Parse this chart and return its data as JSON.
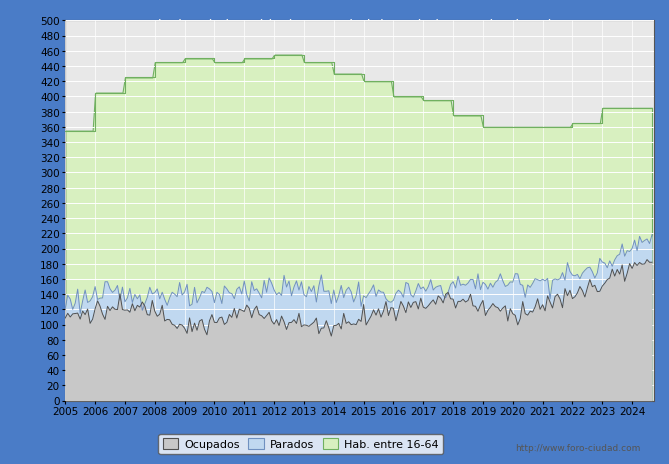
{
  "title": "Lozoya - Evolucion de la poblacion en edad de Trabajar Septiembre de 2024",
  "title_color": "#ffffff",
  "fig_bg": "#4a7cc7",
  "plot_bg": "#e8e8e8",
  "grid_color": "#ffffff",
  "ylim": [
    0,
    500
  ],
  "ytick_step": 20,
  "legend_labels": [
    "Ocupados",
    "Parados",
    "Hab. entre 16-64"
  ],
  "watermark": "http://www.foro-ciudad.com",
  "ocupados_fill": "#c8c8c8",
  "ocupados_line": "#505050",
  "parados_fill": "#c0d8f0",
  "parados_line": "#7090c0",
  "hab_fill": "#d8f0c0",
  "hab_line": "#70b060",
  "tick_fontsize": 7.5,
  "title_fontsize": 10,
  "hab_yearly": [
    355,
    405,
    425,
    445,
    450,
    445,
    450,
    455,
    445,
    430,
    420,
    400,
    395,
    375,
    360,
    360,
    360,
    365,
    385,
    385
  ],
  "par_yearly": [
    130,
    138,
    140,
    142,
    135,
    135,
    148,
    148,
    148,
    142,
    140,
    138,
    145,
    152,
    155,
    155,
    158,
    165,
    175,
    210
  ],
  "occ_yearly": [
    110,
    118,
    120,
    122,
    100,
    100,
    118,
    110,
    100,
    98,
    112,
    120,
    130,
    135,
    125,
    115,
    125,
    138,
    155,
    175
  ]
}
